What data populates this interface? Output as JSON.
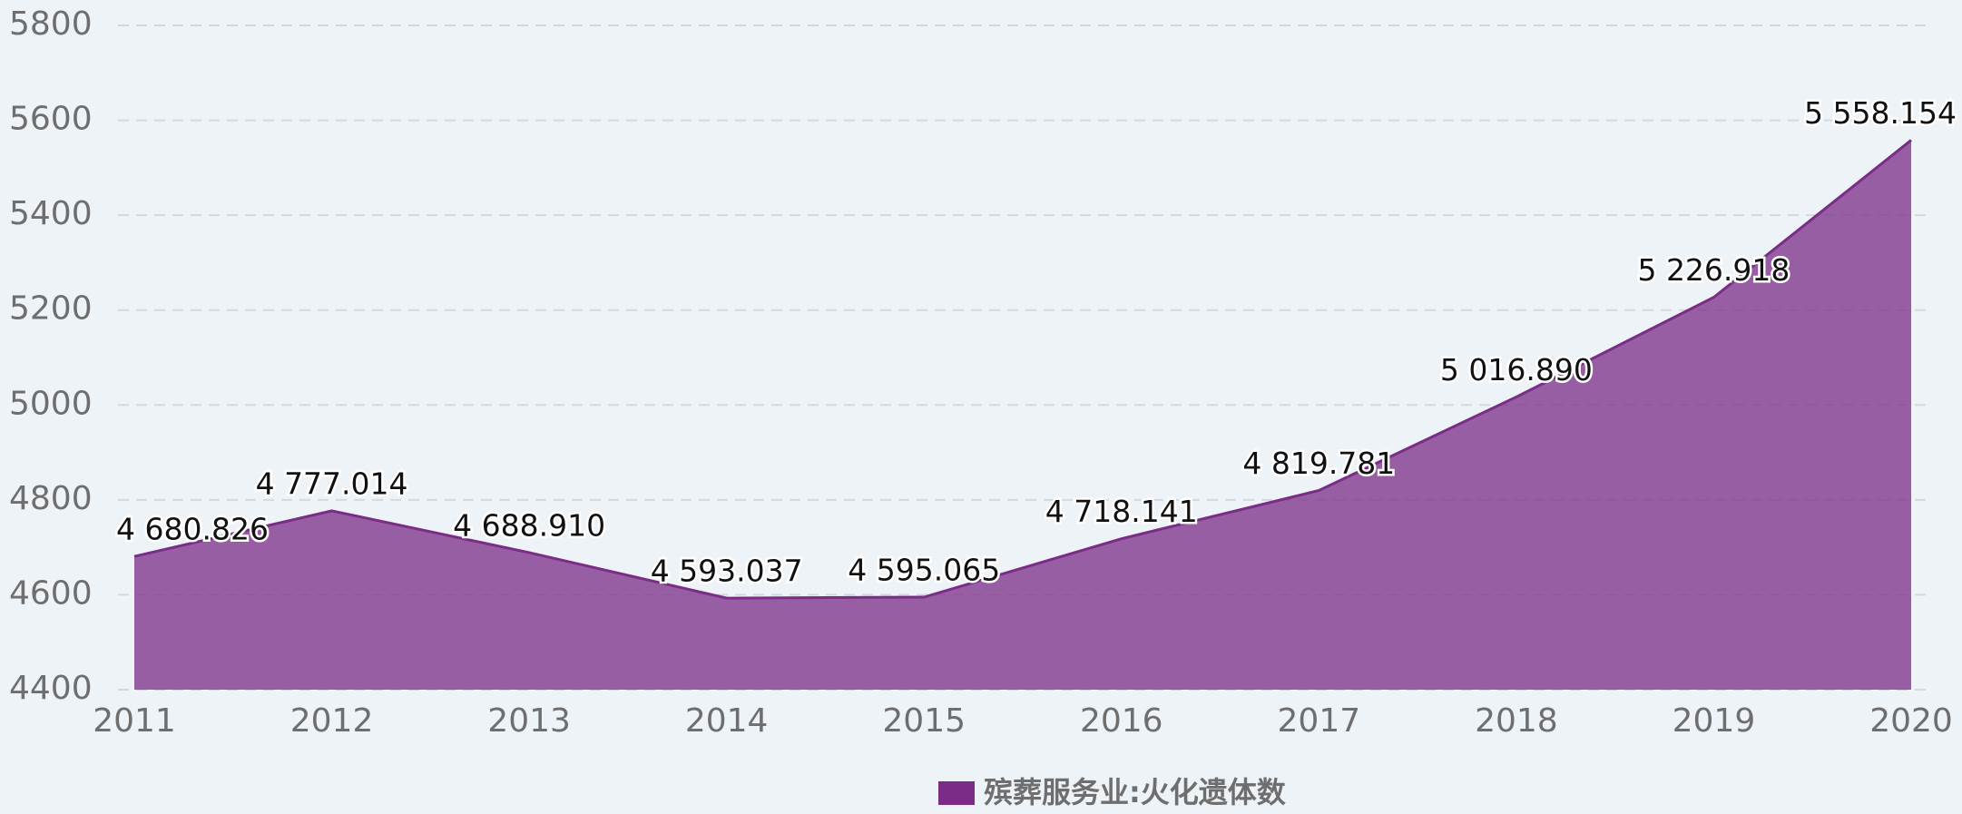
{
  "chart_data": {
    "type": "area",
    "categories": [
      "2011",
      "2012",
      "2013",
      "2014",
      "2015",
      "2016",
      "2017",
      "2018",
      "2019",
      "2020"
    ],
    "series": [
      {
        "name": "殡葬服务业:火化遗体数",
        "color": "#7b2c87",
        "values": [
          4680.826,
          4777.014,
          4688.91,
          4593.037,
          4595.065,
          4718.141,
          4819.781,
          5016.89,
          5226.918,
          5558.154
        ],
        "value_labels": [
          "4 680.826",
          "4 777.014",
          "4 688.910",
          "4 593.037",
          "4 595.065",
          "4 718.141",
          "4 819.781",
          "5 016.890",
          "5 226.918",
          "5 558.154"
        ]
      }
    ],
    "ylim": [
      4400,
      5800
    ],
    "yticks": [
      4400,
      4600,
      4800,
      5000,
      5200,
      5400,
      5600,
      5800
    ],
    "grid": true,
    "legend": "bottom"
  }
}
